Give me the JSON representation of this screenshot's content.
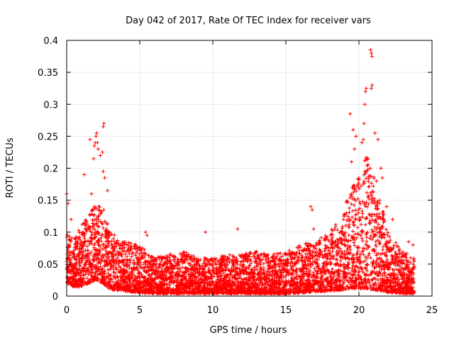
{
  "chart_data": {
    "type": "scatter",
    "title": "Day 042 of 2017, Rate Of TEC Index for receiver vars",
    "xlabel": "GPS time / hours",
    "ylabel": "ROTI / TECUs",
    "xlim": [
      0,
      25
    ],
    "ylim": [
      0,
      0.4
    ],
    "x_ticks": [
      0,
      5,
      10,
      15,
      20,
      25
    ],
    "y_ticks": [
      0,
      0.05,
      0.1,
      0.15,
      0.2,
      0.25,
      0.3,
      0.35,
      0.4
    ],
    "x_tick_labels": [
      "0",
      "5",
      "10",
      "15",
      "20",
      "25"
    ],
    "y_tick_labels": [
      "0",
      "0.05",
      "0.1",
      "0.15",
      "0.2",
      "0.25",
      "0.3",
      "0.35",
      "0.4"
    ],
    "grid": true,
    "marker": "plus",
    "color": "#ff0000",
    "envelope": {
      "x": [
        0,
        0.5,
        1,
        1.5,
        2,
        2.5,
        3,
        4,
        5,
        6,
        7,
        8,
        9,
        10,
        11,
        12,
        13,
        14,
        15,
        16,
        16.5,
        17,
        18,
        19,
        19.5,
        20,
        20.5,
        21,
        21.5,
        22,
        23,
        23.8
      ],
      "max": [
        0.1,
        0.09,
        0.11,
        0.13,
        0.15,
        0.14,
        0.1,
        0.085,
        0.08,
        0.06,
        0.065,
        0.07,
        0.06,
        0.06,
        0.065,
        0.065,
        0.07,
        0.065,
        0.07,
        0.08,
        0.085,
        0.085,
        0.1,
        0.14,
        0.17,
        0.19,
        0.22,
        0.2,
        0.15,
        0.1,
        0.07,
        0.06
      ],
      "min": [
        0.02,
        0.015,
        0.015,
        0.02,
        0.025,
        0.02,
        0.01,
        0.008,
        0.005,
        0.004,
        0.004,
        0.004,
        0.004,
        0.004,
        0.004,
        0.004,
        0.004,
        0.004,
        0.004,
        0.005,
        0.006,
        0.007,
        0.008,
        0.01,
        0.012,
        0.012,
        0.012,
        0.01,
        0.008,
        0.006,
        0.004,
        0.004
      ]
    },
    "outliers": [
      [
        0,
        0.16
      ],
      [
        0.1,
        0.145
      ],
      [
        0.3,
        0.12
      ],
      [
        1.2,
        0.19
      ],
      [
        1.6,
        0.245
      ],
      [
        1.7,
        0.16
      ],
      [
        1.9,
        0.235
      ],
      [
        1.95,
        0.24
      ],
      [
        2.0,
        0.25
      ],
      [
        2.05,
        0.255
      ],
      [
        2.1,
        0.24
      ],
      [
        2.15,
        0.23
      ],
      [
        1.85,
        0.215
      ],
      [
        2.3,
        0.22
      ],
      [
        2.5,
        0.265
      ],
      [
        2.55,
        0.27
      ],
      [
        2.5,
        0.195
      ],
      [
        2.6,
        0.185
      ],
      [
        2.45,
        0.225
      ],
      [
        2.8,
        0.165
      ],
      [
        5.4,
        0.1
      ],
      [
        5.5,
        0.095
      ],
      [
        9.5,
        0.1
      ],
      [
        11.7,
        0.105
      ],
      [
        16.7,
        0.14
      ],
      [
        16.8,
        0.135
      ],
      [
        16.9,
        0.105
      ],
      [
        19.4,
        0.285
      ],
      [
        19.6,
        0.26
      ],
      [
        19.8,
        0.25
      ],
      [
        19.5,
        0.21
      ],
      [
        19.7,
        0.23
      ],
      [
        20.2,
        0.24
      ],
      [
        20.3,
        0.245
      ],
      [
        20.4,
        0.3
      ],
      [
        20.45,
        0.32
      ],
      [
        20.5,
        0.325
      ],
      [
        20.35,
        0.27
      ],
      [
        20.8,
        0.385
      ],
      [
        20.85,
        0.38
      ],
      [
        20.9,
        0.375
      ],
      [
        20.9,
        0.33
      ],
      [
        20.85,
        0.325
      ],
      [
        21.1,
        0.255
      ],
      [
        21.3,
        0.245
      ],
      [
        21.5,
        0.2
      ],
      [
        21.6,
        0.185
      ],
      [
        21.9,
        0.14
      ],
      [
        22.3,
        0.12
      ],
      [
        23.4,
        0.085
      ],
      [
        23.7,
        0.08
      ]
    ]
  }
}
